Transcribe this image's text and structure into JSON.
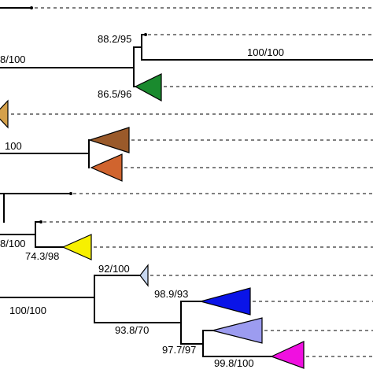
{
  "support_labels": {
    "l1": "8/100",
    "l2": "88.2/95",
    "l3": "100/100",
    "l4": "86.5/96",
    "l5": "100",
    "l6": "8/100",
    "l7": "74.3/98",
    "l8": "92/100",
    "l9": "98.9/93",
    "l10": "100/100",
    "l11": "93.8/70",
    "l12": "97.7/97",
    "l13": "99.8/100"
  },
  "clade_colors": {
    "tan": "#d4a04a",
    "green": "#1a8a2e",
    "brown": "#9a5a2a",
    "orange": "#d0642e",
    "yellow": "#f7f000",
    "pale_blue": "#c8d8f0",
    "blue": "#0a14e8",
    "lavender": "#9c9cf0",
    "magenta": "#f010e0"
  }
}
